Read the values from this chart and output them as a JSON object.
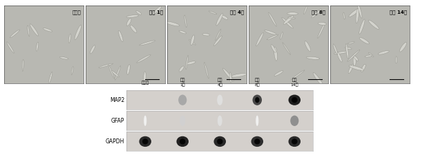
{
  "top_panels": {
    "labels": [
      "분화전",
      "분화 1일",
      "분화 4일",
      "분화 8일",
      "분화 14일"
    ],
    "n": 5,
    "bg_color": "#c8c8c8",
    "cell_color": "#e8e8e8",
    "border_color": "#555555"
  },
  "western_blot": {
    "col_labels": [
      "분화전",
      "분화\n1일",
      "분화\n4일",
      "분화\n8일",
      "분화\n14일"
    ],
    "row_labels": [
      "MAP2",
      "GFAP",
      "GAPDH"
    ],
    "band_intensities": {
      "MAP2": [
        0.0,
        0.35,
        0.12,
        0.75,
        0.92
      ],
      "GFAP": [
        0.05,
        0.18,
        0.12,
        0.05,
        0.45
      ],
      "GAPDH": [
        0.88,
        0.9,
        0.88,
        0.85,
        0.87
      ]
    },
    "band_widths": {
      "MAP2": [
        0.04,
        0.09,
        0.06,
        0.1,
        0.13
      ],
      "GFAP": [
        0.03,
        0.06,
        0.05,
        0.03,
        0.09
      ],
      "GAPDH": [
        0.13,
        0.13,
        0.13,
        0.13,
        0.13
      ]
    },
    "box_bg": "#d4d0cc",
    "band_dark": "#1a1a1a",
    "band_mid": "#555555",
    "label_fontsize": 5.5,
    "col_label_fontsize": 4.5
  },
  "figure_bg": "#ffffff",
  "margin_color": "#ffffff"
}
